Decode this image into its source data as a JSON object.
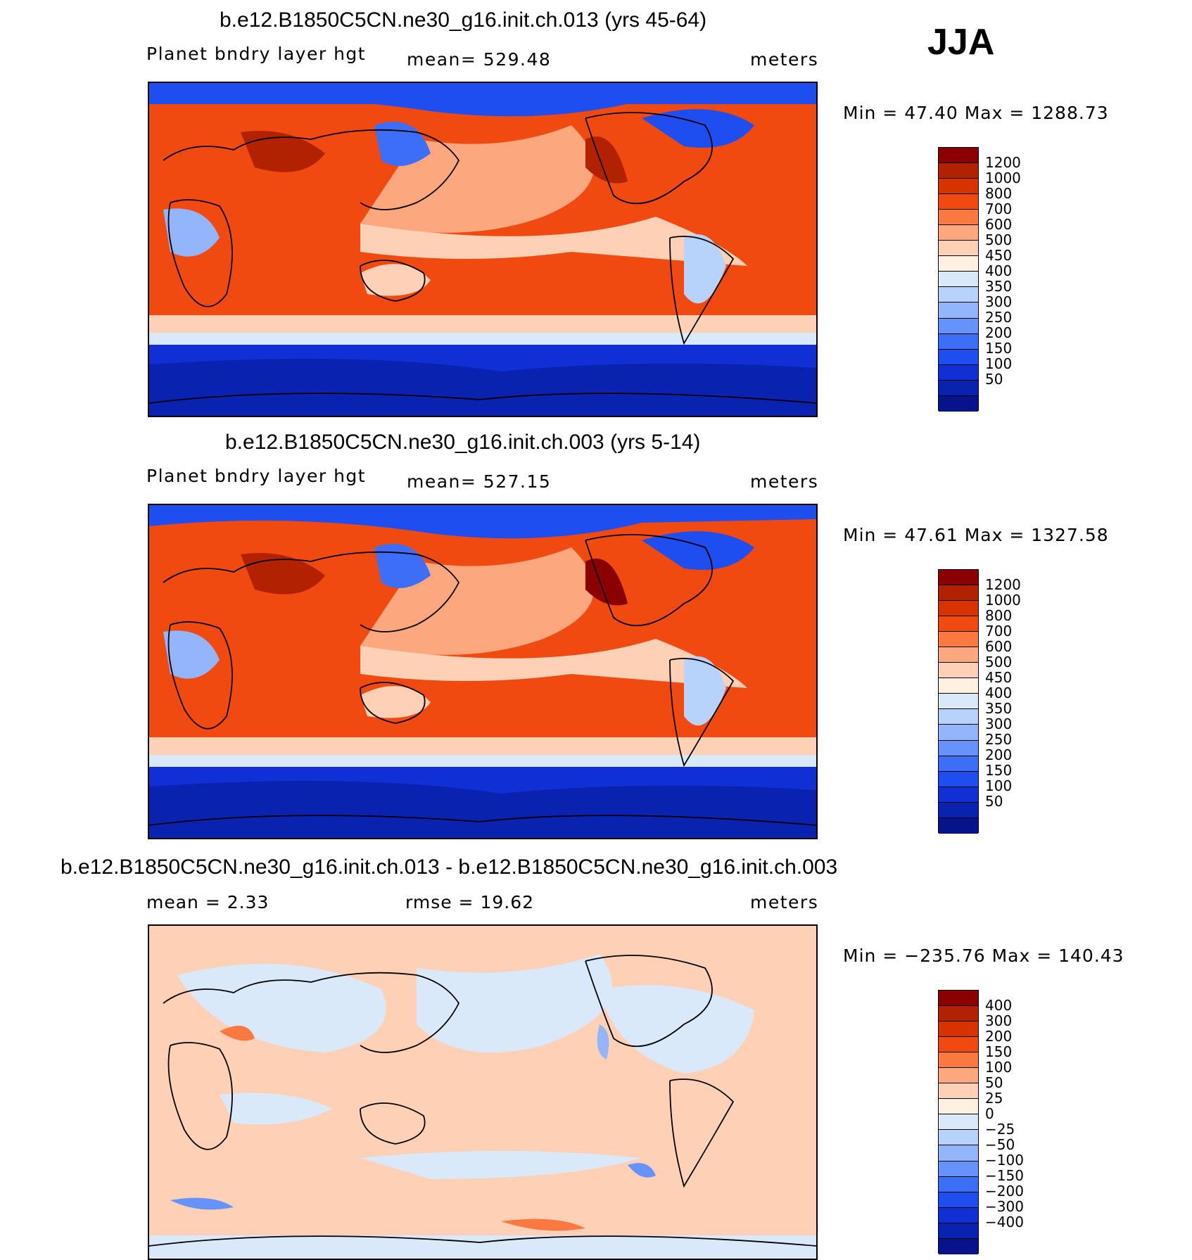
{
  "season": "JJA",
  "panels": [
    {
      "title": "b.e12.B1850C5CN.ne30_g16.init.ch.013 (yrs 45-64)",
      "variable": "Planet bndry layer hgt",
      "stat_mid": "mean=  529.48",
      "units": "meters",
      "minmax": "Min =   47.40  Max  =  1288.73",
      "colorbar": {
        "colors": [
          "#8b0000",
          "#b22200",
          "#d83200",
          "#f04a10",
          "#fb7840",
          "#fda77e",
          "#fed0b5",
          "#fff0e2",
          "#d9e9fa",
          "#b7d2fb",
          "#92b5fb",
          "#6693fb",
          "#3c6ef8",
          "#1f4ef0",
          "#1030d6",
          "#0a22b0",
          "#06138a"
        ],
        "labels": [
          "1200",
          "1000",
          "800",
          "700",
          "600",
          "500",
          "450",
          "400",
          "350",
          "300",
          "250",
          "200",
          "150",
          "100",
          "50"
        ]
      }
    },
    {
      "title": "b.e12.B1850C5CN.ne30_g16.init.ch.003 (yrs 5-14)",
      "variable": "Planet bndry layer hgt",
      "stat_mid": "mean=  527.15",
      "units": "meters",
      "minmax": "Min =   47.61  Max  =  1327.58",
      "colorbar": {
        "colors": [
          "#8b0000",
          "#b22200",
          "#d83200",
          "#f04a10",
          "#fb7840",
          "#fda77e",
          "#fed0b5",
          "#fff0e2",
          "#d9e9fa",
          "#b7d2fb",
          "#92b5fb",
          "#6693fb",
          "#3c6ef8",
          "#1f4ef0",
          "#1030d6",
          "#0a22b0",
          "#06138a"
        ],
        "labels": [
          "1200",
          "1000",
          "800",
          "700",
          "600",
          "500",
          "450",
          "400",
          "350",
          "300",
          "250",
          "200",
          "150",
          "100",
          "50"
        ]
      }
    },
    {
      "title": "b.e12.B1850C5CN.ne30_g16.init.ch.013 - b.e12.B1850C5CN.ne30_g16.init.ch.003",
      "variable": "mean  =     2.33",
      "stat_mid": "rmse  =    19.62",
      "units": "meters",
      "minmax": "Min  =  −235.76  Max  =  140.43",
      "colorbar": {
        "colors": [
          "#8b0000",
          "#b22200",
          "#d83200",
          "#f04a10",
          "#fb7840",
          "#fda77e",
          "#fed0b5",
          "#fff0e2",
          "#d9e9fa",
          "#b7d2fb",
          "#92b5fb",
          "#6693fb",
          "#3c6ef8",
          "#1f4ef0",
          "#1030d6",
          "#0a22b0",
          "#06138a"
        ],
        "labels": [
          "400",
          "300",
          "200",
          "150",
          "100",
          "50",
          "25",
          "0",
          "−25",
          "−50",
          "−100",
          "−150",
          "−200",
          "−300",
          "−400"
        ]
      }
    }
  ]
}
